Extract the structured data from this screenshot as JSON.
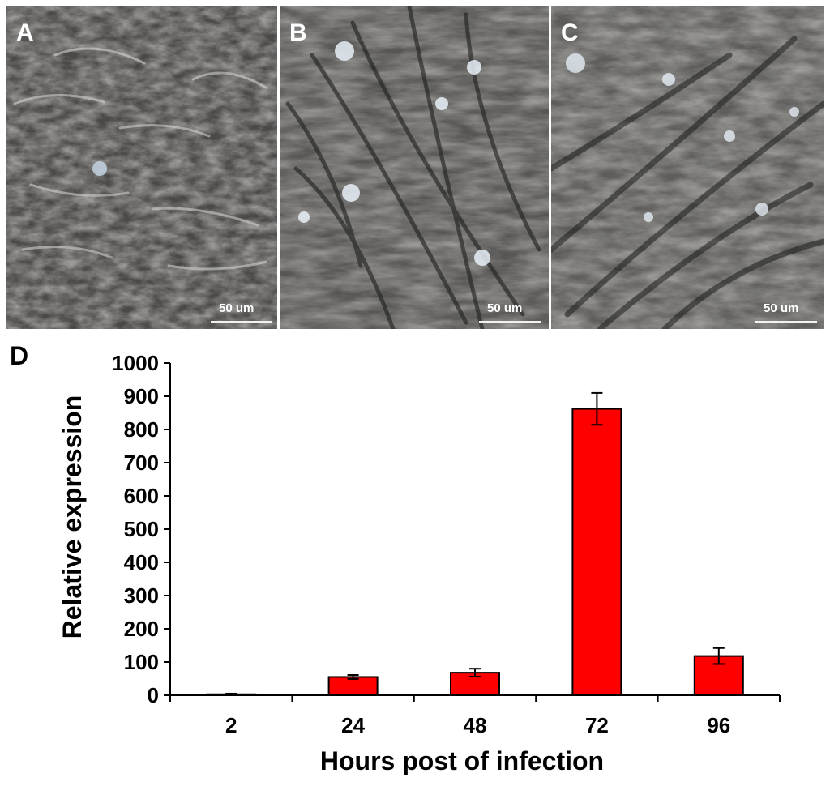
{
  "panels": [
    {
      "letter": "A",
      "scale_label": "50 um"
    },
    {
      "letter": "B",
      "scale_label": "50 um"
    },
    {
      "letter": "C",
      "scale_label": "50 um"
    }
  ],
  "colors": {
    "bar": "#ff0000",
    "axis": "#000000",
    "micrograph_bg": "#5b5a58"
  },
  "chart_data": {
    "panel_letter": "D",
    "type": "bar",
    "categories": [
      "2",
      "24",
      "48",
      "72",
      "96"
    ],
    "values": [
      3,
      55,
      68,
      862,
      118
    ],
    "errors": [
      2,
      6,
      12,
      48,
      24
    ],
    "xlabel": "Hours post of infection",
    "ylabel": "Relative expression",
    "ylim": [
      0,
      1000
    ],
    "yticks": [
      0,
      100,
      200,
      300,
      400,
      500,
      600,
      700,
      800,
      900,
      1000
    ],
    "grid": false
  }
}
